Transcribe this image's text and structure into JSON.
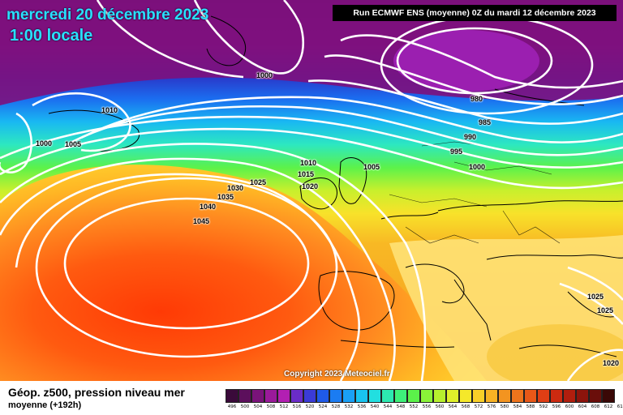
{
  "header": {
    "date_line": "mercredi 20 décembre 2023",
    "time_line": "1:00 locale",
    "run_info": "Run ECMWF ENS (moyenne) 0Z du mardi 12 décembre 2023"
  },
  "copyright": "Copyright 2023 Meteociel.fr",
  "isobar_labels": [
    "1000",
    "1010",
    "1000",
    "1005",
    "980",
    "985",
    "990",
    "995",
    "1000",
    "1005",
    "1010",
    "1015",
    "1020",
    "1025",
    "1030",
    "1035",
    "1040",
    "1045",
    "1025",
    "1025",
    "1020"
  ],
  "footer": {
    "title": "Géop. z500, pression niveau mer",
    "subtitle": "moyenne  (+192h)"
  },
  "legend": {
    "ticks": [
      "496",
      "500",
      "504",
      "508",
      "512",
      "516",
      "520",
      "524",
      "528",
      "532",
      "536",
      "540",
      "544",
      "548",
      "552",
      "556",
      "560",
      "564",
      "568",
      "572",
      "576",
      "580",
      "584",
      "588",
      "592",
      "596",
      "600",
      "604",
      "608",
      "612",
      "616"
    ],
    "colors": [
      "#3a0a3a",
      "#5c0f5c",
      "#7a137a",
      "#9a1a9a",
      "#b21fb2",
      "#6a2cc8",
      "#3b3bd6",
      "#1f5ae8",
      "#1b7cf2",
      "#1aa0f5",
      "#19c4f0",
      "#22dfe0",
      "#2de8b0",
      "#3ef07a",
      "#5bf24a",
      "#8af238",
      "#b6f02e",
      "#dff02a",
      "#f5e82a",
      "#f8cf28",
      "#f7b224",
      "#f39420",
      "#ee741c",
      "#e85818",
      "#df3e14",
      "#cc2a10",
      "#b01e0e",
      "#8c140c",
      "#6a0e0a",
      "#3a0806"
    ],
    "highlight_color": "#ff3c00"
  }
}
